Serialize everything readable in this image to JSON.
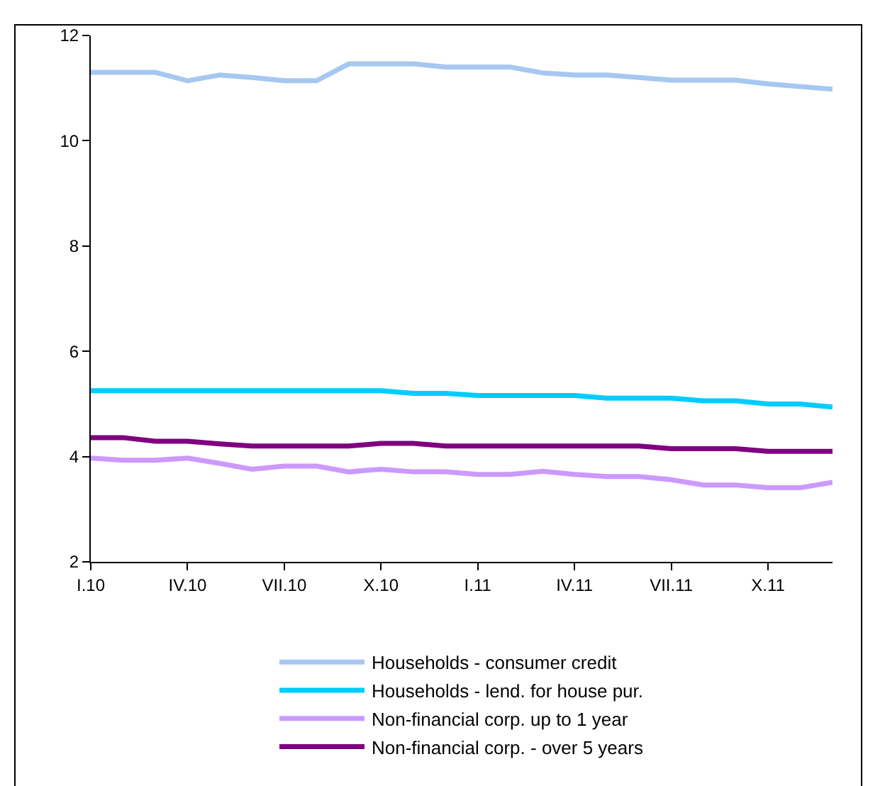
{
  "chart_data": {
    "type": "line",
    "categories": [
      "I.10",
      null,
      null,
      "IV.10",
      null,
      null,
      "VII.10",
      null,
      null,
      "X.10",
      null,
      null,
      "I.11",
      null,
      null,
      "IV.11",
      null,
      null,
      "VII.11",
      null,
      null,
      "X.11",
      null,
      null
    ],
    "series": [
      {
        "name": "Households - consumer credit",
        "color": "#a6c8f0",
        "values": [
          11.3,
          11.3,
          11.3,
          11.14,
          11.25,
          11.2,
          11.14,
          11.14,
          11.46,
          11.46,
          11.46,
          11.4,
          11.4,
          11.4,
          11.29,
          11.25,
          11.25,
          11.2,
          11.15,
          11.15,
          11.15,
          11.08,
          11.03,
          10.98
        ]
      },
      {
        "name": "Households - lend. for house pur.",
        "color": "#00ccff",
        "values": [
          5.25,
          5.25,
          5.25,
          5.25,
          5.25,
          5.25,
          5.25,
          5.25,
          5.25,
          5.25,
          5.2,
          5.2,
          5.16,
          5.16,
          5.16,
          5.16,
          5.11,
          5.11,
          5.11,
          5.06,
          5.06,
          5.0,
          5.0,
          4.94
        ]
      },
      {
        "name": "Non-financial corp. up to 1 year",
        "color": "#cc99ff",
        "values": [
          3.97,
          3.93,
          3.93,
          3.97,
          3.87,
          3.76,
          3.82,
          3.82,
          3.71,
          3.76,
          3.71,
          3.71,
          3.66,
          3.66,
          3.72,
          3.66,
          3.62,
          3.62,
          3.56,
          3.46,
          3.46,
          3.41,
          3.41,
          3.51
        ]
      },
      {
        "name": "Non-financial corp. - over 5 years",
        "color": "#800080",
        "values": [
          4.36,
          4.36,
          4.29,
          4.29,
          4.24,
          4.2,
          4.2,
          4.2,
          4.2,
          4.25,
          4.25,
          4.2,
          4.2,
          4.2,
          4.2,
          4.2,
          4.2,
          4.2,
          4.15,
          4.15,
          4.15,
          4.1,
          4.1,
          4.1
        ]
      }
    ],
    "ylim": [
      2,
      12
    ],
    "yticks": [
      2,
      4,
      6,
      8,
      10,
      12
    ],
    "grid": false,
    "legend": "bottom",
    "marker": "none",
    "line_style": "solid"
  }
}
